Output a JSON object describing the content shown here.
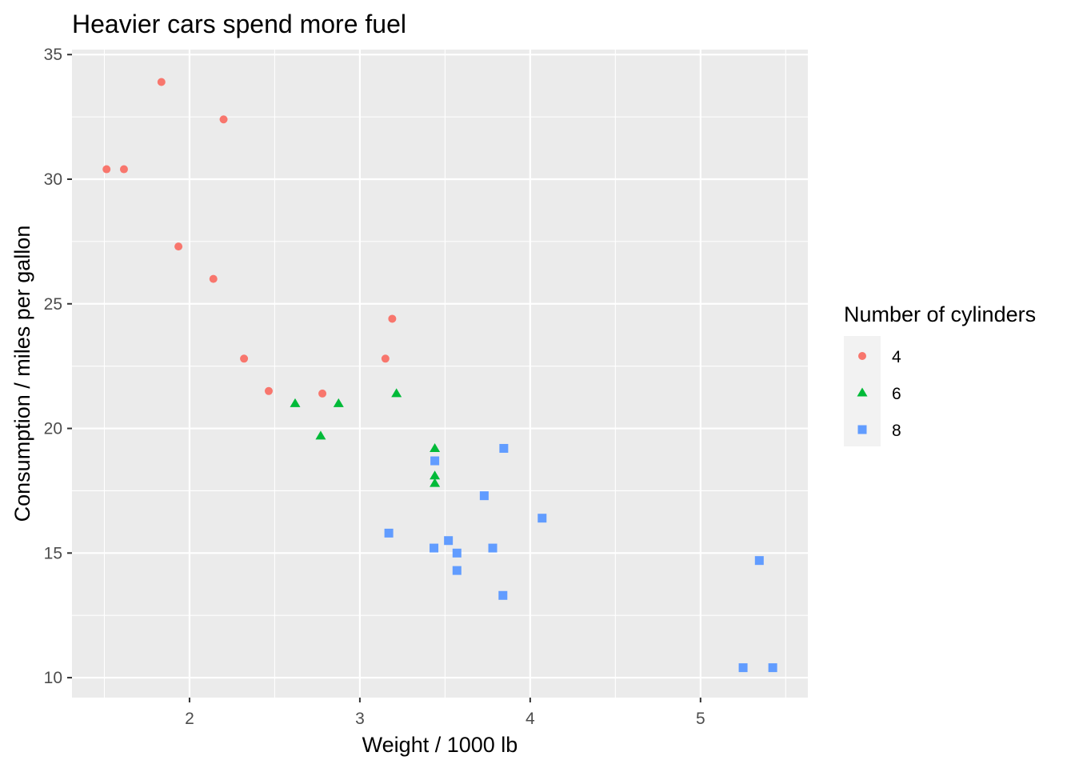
{
  "chart_data": {
    "type": "scatter",
    "title": "Heavier cars spend more fuel",
    "xlabel": "Weight / 1000 lb",
    "ylabel": "Consumption / miles per gallon",
    "xlim": [
      1.31,
      5.63
    ],
    "ylim": [
      9.2,
      35.2
    ],
    "x_ticks": [
      2,
      3,
      4,
      5
    ],
    "y_ticks": [
      10,
      15,
      20,
      25,
      30,
      35
    ],
    "grid": true,
    "background": "#ebebeb",
    "legend": {
      "title": "Number of cylinders",
      "placement": "right",
      "entries": [
        {
          "label": "4",
          "color": "#F8766D",
          "shape": "circle"
        },
        {
          "label": "6",
          "color": "#00BA38",
          "shape": "triangle"
        },
        {
          "label": "8",
          "color": "#619CFF",
          "shape": "square"
        }
      ]
    },
    "series": [
      {
        "name": "4",
        "color": "#F8766D",
        "shape": "circle",
        "points": [
          [
            2.32,
            22.8
          ],
          [
            3.19,
            24.4
          ],
          [
            3.15,
            22.8
          ],
          [
            2.2,
            32.4
          ],
          [
            1.615,
            30.4
          ],
          [
            1.835,
            33.9
          ],
          [
            2.465,
            21.5
          ],
          [
            1.935,
            27.3
          ],
          [
            2.14,
            26.0
          ],
          [
            1.513,
            30.4
          ],
          [
            2.78,
            21.4
          ]
        ]
      },
      {
        "name": "6",
        "color": "#00BA38",
        "shape": "triangle",
        "points": [
          [
            2.62,
            21.0
          ],
          [
            2.875,
            21.0
          ],
          [
            3.215,
            21.4
          ],
          [
            3.44,
            18.1
          ],
          [
            3.44,
            19.2
          ],
          [
            3.44,
            17.8
          ],
          [
            2.77,
            19.7
          ]
        ]
      },
      {
        "name": "8",
        "color": "#619CFF",
        "shape": "square",
        "points": [
          [
            3.44,
            18.7
          ],
          [
            3.57,
            14.3
          ],
          [
            4.07,
            16.4
          ],
          [
            3.73,
            17.3
          ],
          [
            3.78,
            15.2
          ],
          [
            5.25,
            10.4
          ],
          [
            5.424,
            10.4
          ],
          [
            5.345,
            14.7
          ],
          [
            3.52,
            15.5
          ],
          [
            3.435,
            15.2
          ],
          [
            3.84,
            13.3
          ],
          [
            3.845,
            19.2
          ],
          [
            3.17,
            15.8
          ],
          [
            3.57,
            15.0
          ]
        ]
      }
    ]
  }
}
